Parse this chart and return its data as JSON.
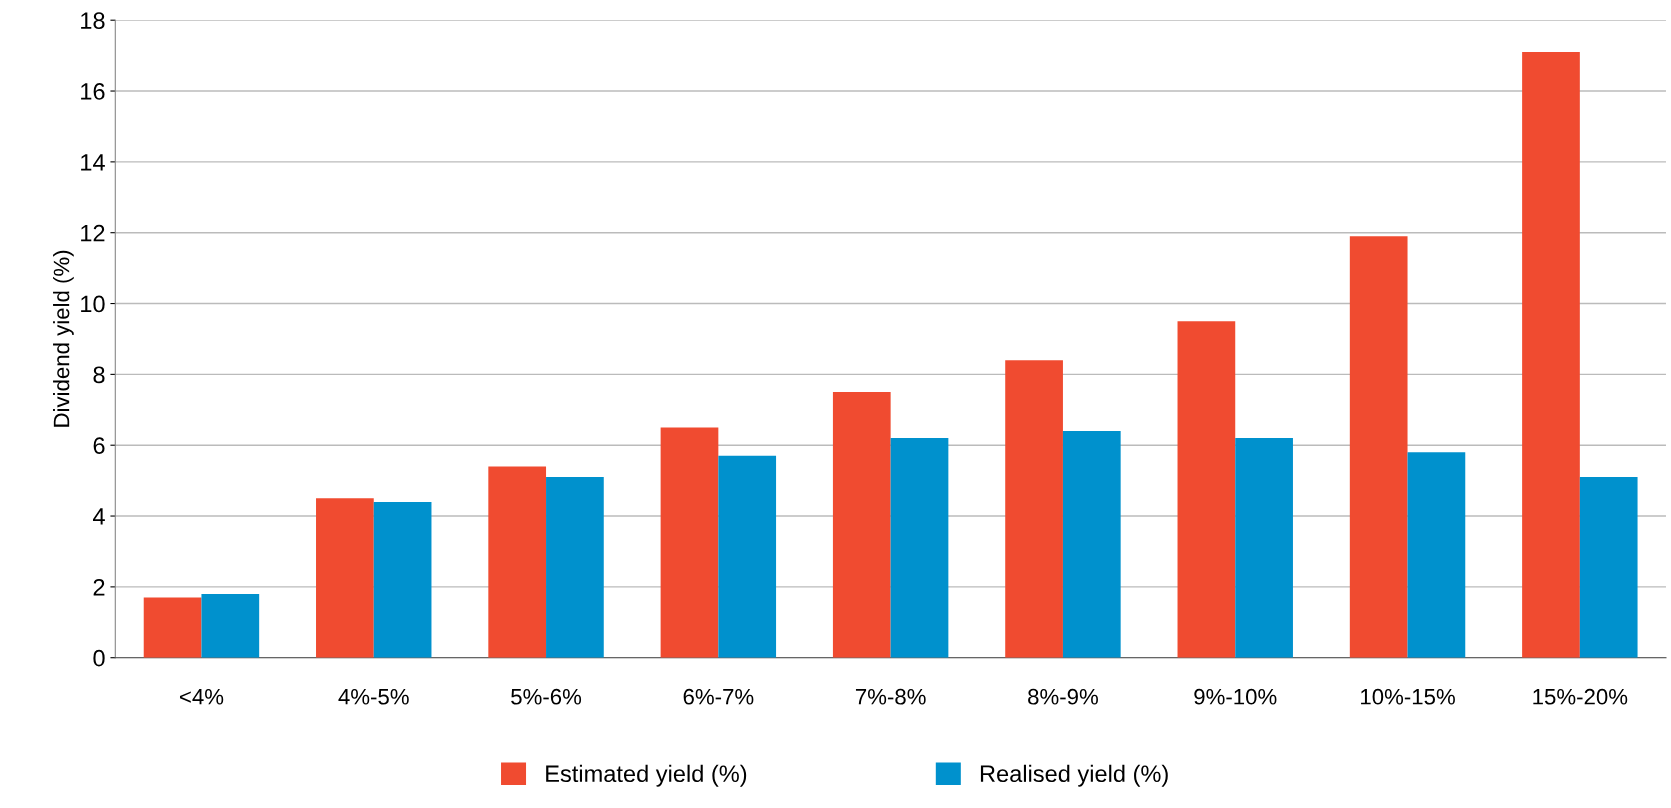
{
  "chart_data": {
    "type": "bar",
    "ylabel": "Dividend yield (%)",
    "categories": [
      "<4%",
      "4%-5%",
      "5%-6%",
      "6%-7%",
      "7%-8%",
      "8%-9%",
      "9%-10%",
      "10%-15%",
      "15%-20%"
    ],
    "series": [
      {
        "name": "Estimated yield (%)",
        "color": "#f04b30",
        "values": [
          1.7,
          4.5,
          5.4,
          6.5,
          7.5,
          8.4,
          9.5,
          11.9,
          17.1
        ]
      },
      {
        "name": "Realised yield (%)",
        "color": "#0091cd",
        "values": [
          1.8,
          4.4,
          5.1,
          5.7,
          6.2,
          6.4,
          6.2,
          5.8,
          5.1
        ]
      }
    ],
    "ylim": [
      0,
      18
    ],
    "yticks": [
      0,
      2,
      4,
      6,
      8,
      10,
      12,
      14,
      16,
      18
    ],
    "grid": "y",
    "legend": "bottom"
  }
}
